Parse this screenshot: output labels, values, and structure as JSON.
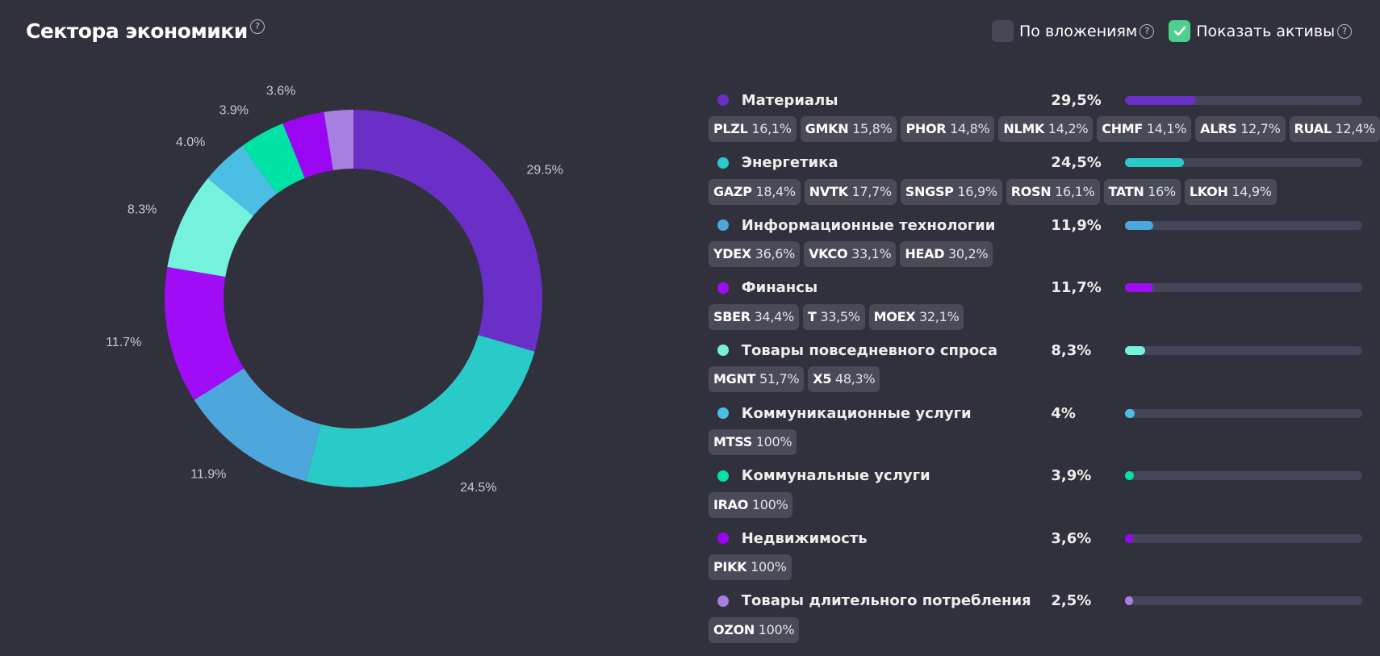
{
  "header": {
    "title": "Сектора экономики",
    "help": "?",
    "by_investments_label": "По вложениям",
    "by_investments_checked": false,
    "show_assets_label": "Показать активы",
    "show_assets_checked": true
  },
  "chart_data": {
    "type": "pie",
    "variant": "donut",
    "title": "Сектора экономики",
    "slices": [
      {
        "label": "Материалы",
        "value": 29.5,
        "data_label": "29.5%",
        "color": "#6a2fc6"
      },
      {
        "label": "Энергетика",
        "value": 24.5,
        "data_label": "24.5%",
        "color": "#29cbc8"
      },
      {
        "label": "Информационные технологии",
        "value": 11.9,
        "data_label": "11.9%",
        "color": "#4da6dc"
      },
      {
        "label": "Финансы",
        "value": 11.7,
        "data_label": "11.7%",
        "color": "#a10cf6"
      },
      {
        "label": "Товары повседневного спроса",
        "value": 8.3,
        "data_label": "8.3%",
        "color": "#74f2dc"
      },
      {
        "label": "Коммуникационные услуги",
        "value": 4.0,
        "data_label": "4.0%",
        "color": "#4abfe3"
      },
      {
        "label": "Коммунальные услуги",
        "value": 3.9,
        "data_label": "3.9%",
        "color": "#00e3a4"
      },
      {
        "label": "Недвижимость",
        "value": 3.6,
        "data_label": "3.6%",
        "color": "#9a06f2"
      },
      {
        "label": "Товары длительного потребления",
        "value": 2.5,
        "data_label": "",
        "color": "#a67fe0"
      }
    ]
  },
  "sectors": [
    {
      "name": "Материалы",
      "pct": "29,5%",
      "value": 29.5,
      "color": "#6a2fc6",
      "assets": [
        [
          "PLZL",
          "16,1%"
        ],
        [
          "GMKN",
          "15,8%"
        ],
        [
          "PHOR",
          "14,8%"
        ],
        [
          "NLMK",
          "14,2%"
        ],
        [
          "CHMF",
          "14,1%"
        ],
        [
          "ALRS",
          "12,7%"
        ],
        [
          "RUAL",
          "12,4%"
        ]
      ]
    },
    {
      "name": "Энергетика",
      "pct": "24,5%",
      "value": 24.5,
      "color": "#29cbc8",
      "assets": [
        [
          "GAZP",
          "18,4%"
        ],
        [
          "NVTK",
          "17,7%"
        ],
        [
          "SNGSP",
          "16,9%"
        ],
        [
          "ROSN",
          "16,1%"
        ],
        [
          "TATN",
          "16%"
        ],
        [
          "LKOH",
          "14,9%"
        ]
      ]
    },
    {
      "name": "Информационные технологии",
      "pct": "11,9%",
      "value": 11.9,
      "color": "#4da6dc",
      "assets": [
        [
          "YDEX",
          "36,6%"
        ],
        [
          "VKCO",
          "33,1%"
        ],
        [
          "HEAD",
          "30,2%"
        ]
      ]
    },
    {
      "name": "Финансы",
      "pct": "11,7%",
      "value": 11.7,
      "color": "#a10cf6",
      "assets": [
        [
          "SBER",
          "34,4%"
        ],
        [
          "T",
          "33,5%"
        ],
        [
          "MOEX",
          "32,1%"
        ]
      ]
    },
    {
      "name": "Товары повседневного спроса",
      "pct": "8,3%",
      "value": 8.3,
      "color": "#74f2dc",
      "assets": [
        [
          "MGNT",
          "51,7%"
        ],
        [
          "X5",
          "48,3%"
        ]
      ]
    },
    {
      "name": "Коммуникационные услуги",
      "pct": "4%",
      "value": 4.0,
      "color": "#4abfe3",
      "assets": [
        [
          "MTSS",
          "100%"
        ]
      ]
    },
    {
      "name": "Коммунальные услуги",
      "pct": "3,9%",
      "value": 3.9,
      "color": "#00e3a4",
      "assets": [
        [
          "IRAO",
          "100%"
        ]
      ]
    },
    {
      "name": "Недвижимость",
      "pct": "3,6%",
      "value": 3.6,
      "color": "#9a06f2",
      "assets": [
        [
          "PIKK",
          "100%"
        ]
      ]
    },
    {
      "name": "Товары длительного потребления",
      "pct": "2,5%",
      "value": 2.5,
      "color": "#a67fe0",
      "assets": [
        [
          "OZON",
          "100%"
        ]
      ]
    }
  ]
}
